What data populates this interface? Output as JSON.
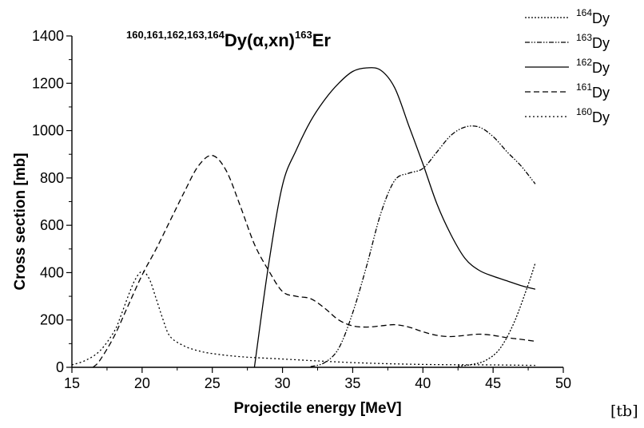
{
  "chart_data": {
    "type": "line",
    "title": {
      "prefix_sup": "160,161,162,163,164",
      "main": "Dy(α,xn)",
      "product_sup": "163",
      "product": "Er"
    },
    "xlabel": "Projectile energy [MeV]",
    "ylabel": "Cross section [mb]",
    "xlim": [
      15,
      50
    ],
    "ylim": [
      0,
      1400
    ],
    "xticks": [
      15,
      20,
      25,
      30,
      35,
      40,
      45,
      50
    ],
    "yticks": [
      0,
      200,
      400,
      600,
      800,
      1000,
      1200,
      1400
    ],
    "grid": false,
    "legend_position": "top-right",
    "series": [
      {
        "name_sup": "164",
        "name": "Dy",
        "dash": "densely-dotted",
        "x": [
          42.5,
          43.5,
          44.5,
          45.5,
          46.5,
          47.5,
          48
        ],
        "y": [
          5,
          12,
          30,
          80,
          190,
          350,
          440
        ]
      },
      {
        "name_sup": "163",
        "name": "Dy",
        "dash": "dash-dot-dot",
        "x": [
          32,
          33,
          34,
          35,
          36,
          37,
          38,
          39,
          40,
          41,
          42,
          43,
          44,
          45,
          46,
          47,
          48
        ],
        "y": [
          3,
          20,
          80,
          230,
          430,
          650,
          790,
          820,
          840,
          910,
          980,
          1015,
          1015,
          975,
          910,
          850,
          775
        ]
      },
      {
        "name_sup": "162",
        "name": "Dy",
        "dash": "solid",
        "x": [
          28,
          29,
          30,
          31,
          32,
          33,
          34,
          35,
          36,
          37,
          38,
          39,
          40,
          41,
          42,
          43,
          44,
          45,
          46,
          47,
          48
        ],
        "y": [
          0,
          430,
          770,
          920,
          1040,
          1130,
          1200,
          1250,
          1265,
          1255,
          1180,
          1020,
          860,
          690,
          560,
          460,
          410,
          385,
          365,
          345,
          330
        ]
      },
      {
        "name_sup": "161",
        "name": "Dy",
        "dash": "dashed",
        "x": [
          16.5,
          17,
          18,
          19,
          20,
          21,
          22,
          23,
          24,
          25,
          26,
          27,
          28,
          29,
          30,
          31,
          32,
          33,
          34,
          35,
          36,
          37,
          38,
          39,
          40,
          41,
          42,
          43,
          44,
          45,
          46,
          47,
          48
        ],
        "y": [
          0,
          30,
          130,
          260,
          390,
          500,
          620,
          740,
          850,
          895,
          830,
          680,
          520,
          410,
          320,
          300,
          290,
          250,
          200,
          175,
          170,
          175,
          180,
          170,
          150,
          135,
          130,
          135,
          140,
          135,
          125,
          118,
          110
        ]
      },
      {
        "name_sup": "160",
        "name": "Dy",
        "dash": "dotted",
        "x": [
          15,
          16,
          17,
          18,
          18.5,
          19,
          19.5,
          20,
          20.5,
          21,
          21.5,
          22,
          23,
          24,
          25,
          27,
          30,
          35,
          40,
          45,
          48
        ],
        "y": [
          10,
          30,
          70,
          150,
          220,
          300,
          370,
          405,
          375,
          290,
          200,
          130,
          90,
          70,
          58,
          45,
          35,
          20,
          12,
          10,
          8
        ]
      }
    ]
  },
  "corner_tag": "[tb]"
}
